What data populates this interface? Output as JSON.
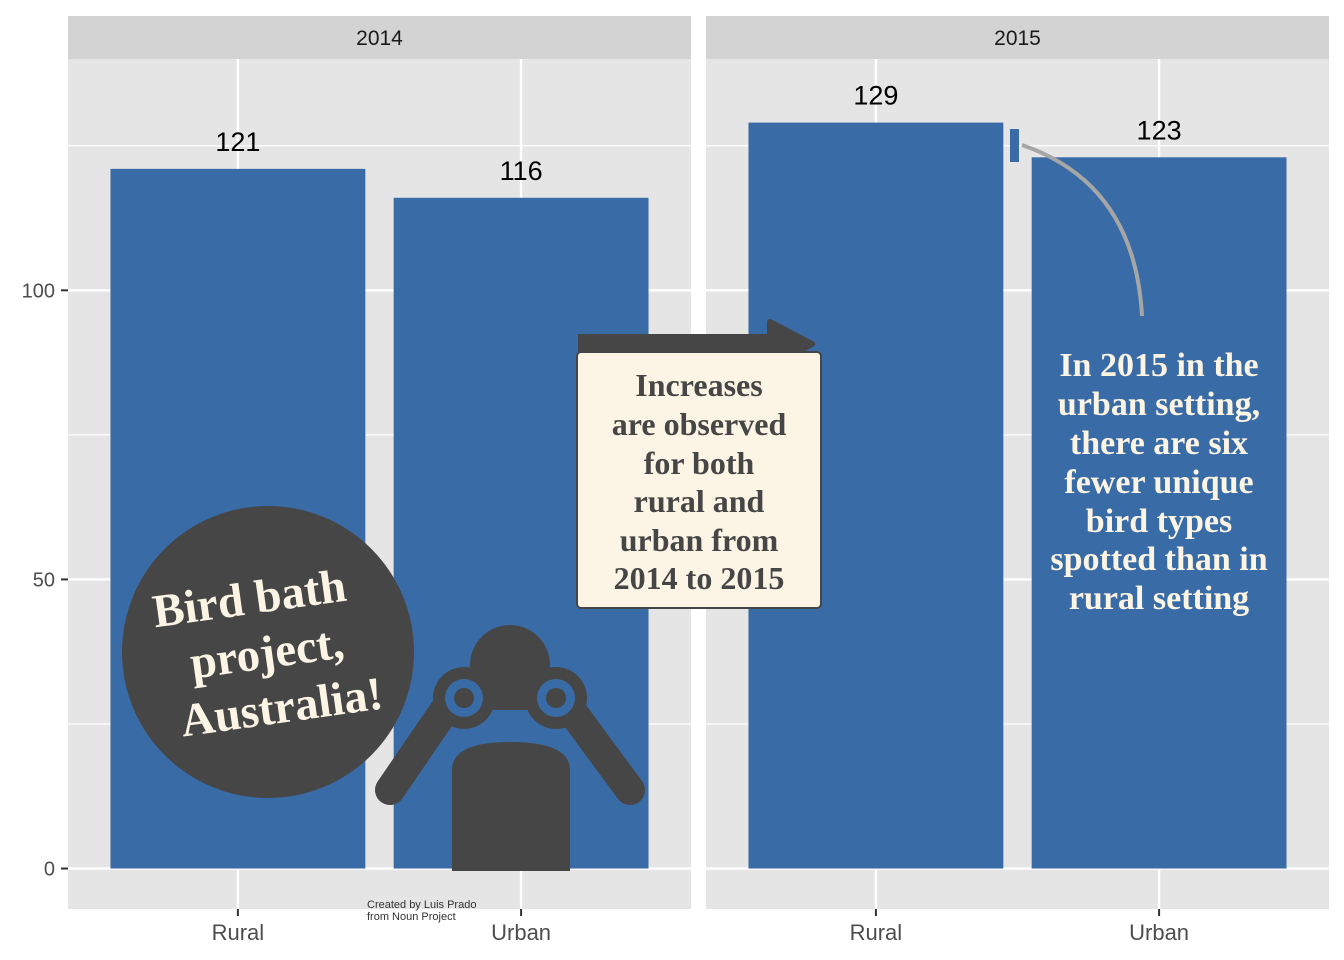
{
  "colors": {
    "bar": "#396ca6",
    "panel": "#e5e5e5",
    "strip": "#d3d3d3",
    "grid": "#ffffff",
    "dark": "#464646",
    "cream": "#fcf4e4",
    "connector": "#a6a6a6"
  },
  "chart_data": {
    "type": "bar",
    "ylim": [
      -7,
      140
    ],
    "yticks": [
      0,
      50,
      100
    ],
    "ytick_labels": [
      "0",
      "50",
      "100"
    ],
    "categories": [
      "Rural",
      "Urban"
    ],
    "panels": [
      {
        "label": "2014",
        "values": [
          121,
          116
        ],
        "value_labels": [
          "121",
          "116"
        ]
      },
      {
        "label": "2015",
        "values": [
          129,
          123
        ],
        "value_labels": [
          "129",
          "123"
        ]
      }
    ]
  },
  "annotations": {
    "badge": "Bird bath project, Australia!",
    "badge_lines": [
      "Bird bath",
      "project,",
      "Australia!"
    ],
    "box_lines": [
      "Increases",
      "are observed",
      "for both",
      "rural and",
      "urban from",
      "2014 to 2015"
    ],
    "note_lines": [
      "In 2015 in the",
      "urban setting,",
      "there are six",
      "fewer unique",
      "bird types",
      "spotted than in",
      "rural setting"
    ],
    "credit_lines": [
      "Created by Luis Prado",
      "from Noun Project"
    ]
  },
  "icons": [
    "binoculars-person-icon",
    "arrow-right-icon"
  ]
}
